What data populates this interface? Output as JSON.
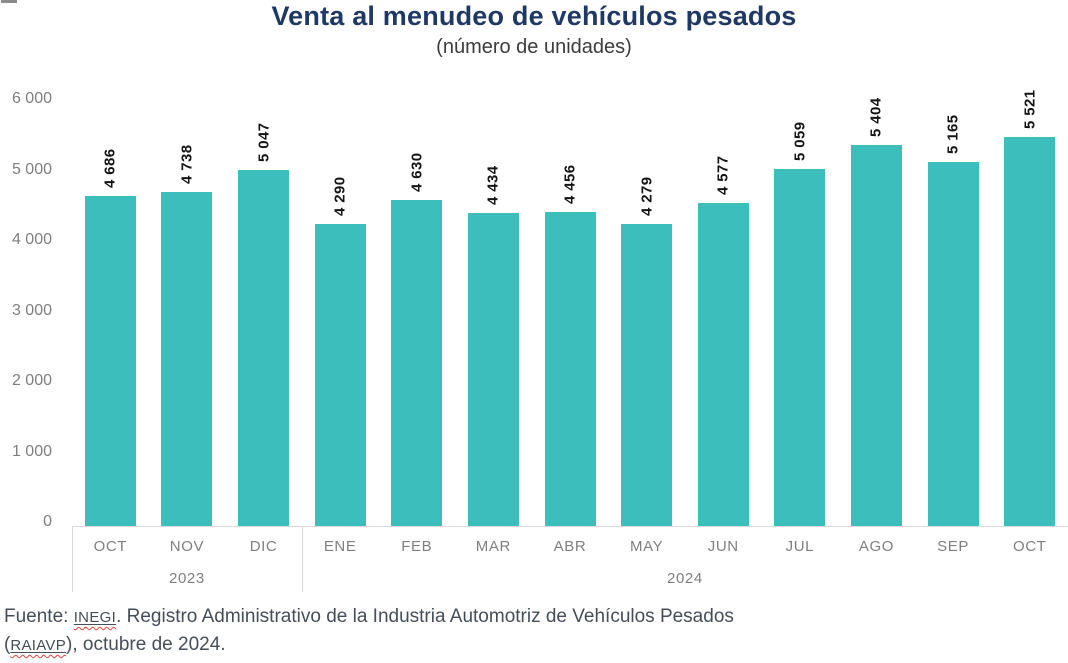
{
  "chart": {
    "title_color": "#1F3864",
    "subtitle_color": "#3C3C3C",
    "bar_color": "#3BBEBC",
    "axis_text_color": "#7F7F7F",
    "axis_line_color": "#D9D9D9",
    "value_label_color": "#141414",
    "footer_color": "#454E59",
    "squiggle_color": "#E0443A"
  },
  "chart_data": {
    "type": "bar",
    "title": "Venta al menudeo de vehículos pesados",
    "subtitle": "(número de unidades)",
    "categories": [
      "OCT",
      "NOV",
      "DIC",
      "ENE",
      "FEB",
      "MAR",
      "ABR",
      "MAY",
      "JUN",
      "JUL",
      "AGO",
      "SEP",
      "OCT"
    ],
    "values": [
      4686,
      4738,
      5047,
      4290,
      4630,
      4434,
      4456,
      4279,
      4577,
      5059,
      5404,
      5165,
      5521
    ],
    "value_labels": [
      "4 686",
      "4 738",
      "5 047",
      "4 290",
      "4 630",
      "4 434",
      "4 456",
      "4 279",
      "4 577",
      "5 059",
      "5 404",
      "5 165",
      "5 521"
    ],
    "year_groups": [
      {
        "label": "2023",
        "start": 0,
        "end": 2
      },
      {
        "label": "2024",
        "start": 3,
        "end": 12
      }
    ],
    "ylim": [
      0,
      6000
    ],
    "yticks": [
      0,
      1000,
      2000,
      3000,
      4000,
      5000,
      6000
    ],
    "ytick_labels": [
      "0",
      "1 000",
      "2 000",
      "3 000",
      "4 000",
      "5 000",
      "6 000"
    ],
    "grid": false,
    "legend": false,
    "value_labels_rotation_degrees": 90
  },
  "footer": {
    "prefix": "Fuente: ",
    "source_link": "INEGI",
    "line1_rest": ". Registro Administrativo de la Industria Automotriz de Vehículos Pesados",
    "line2_prefix": "(",
    "registry_link": "RAIAVP",
    "line2_rest": "), octubre de 2024."
  }
}
